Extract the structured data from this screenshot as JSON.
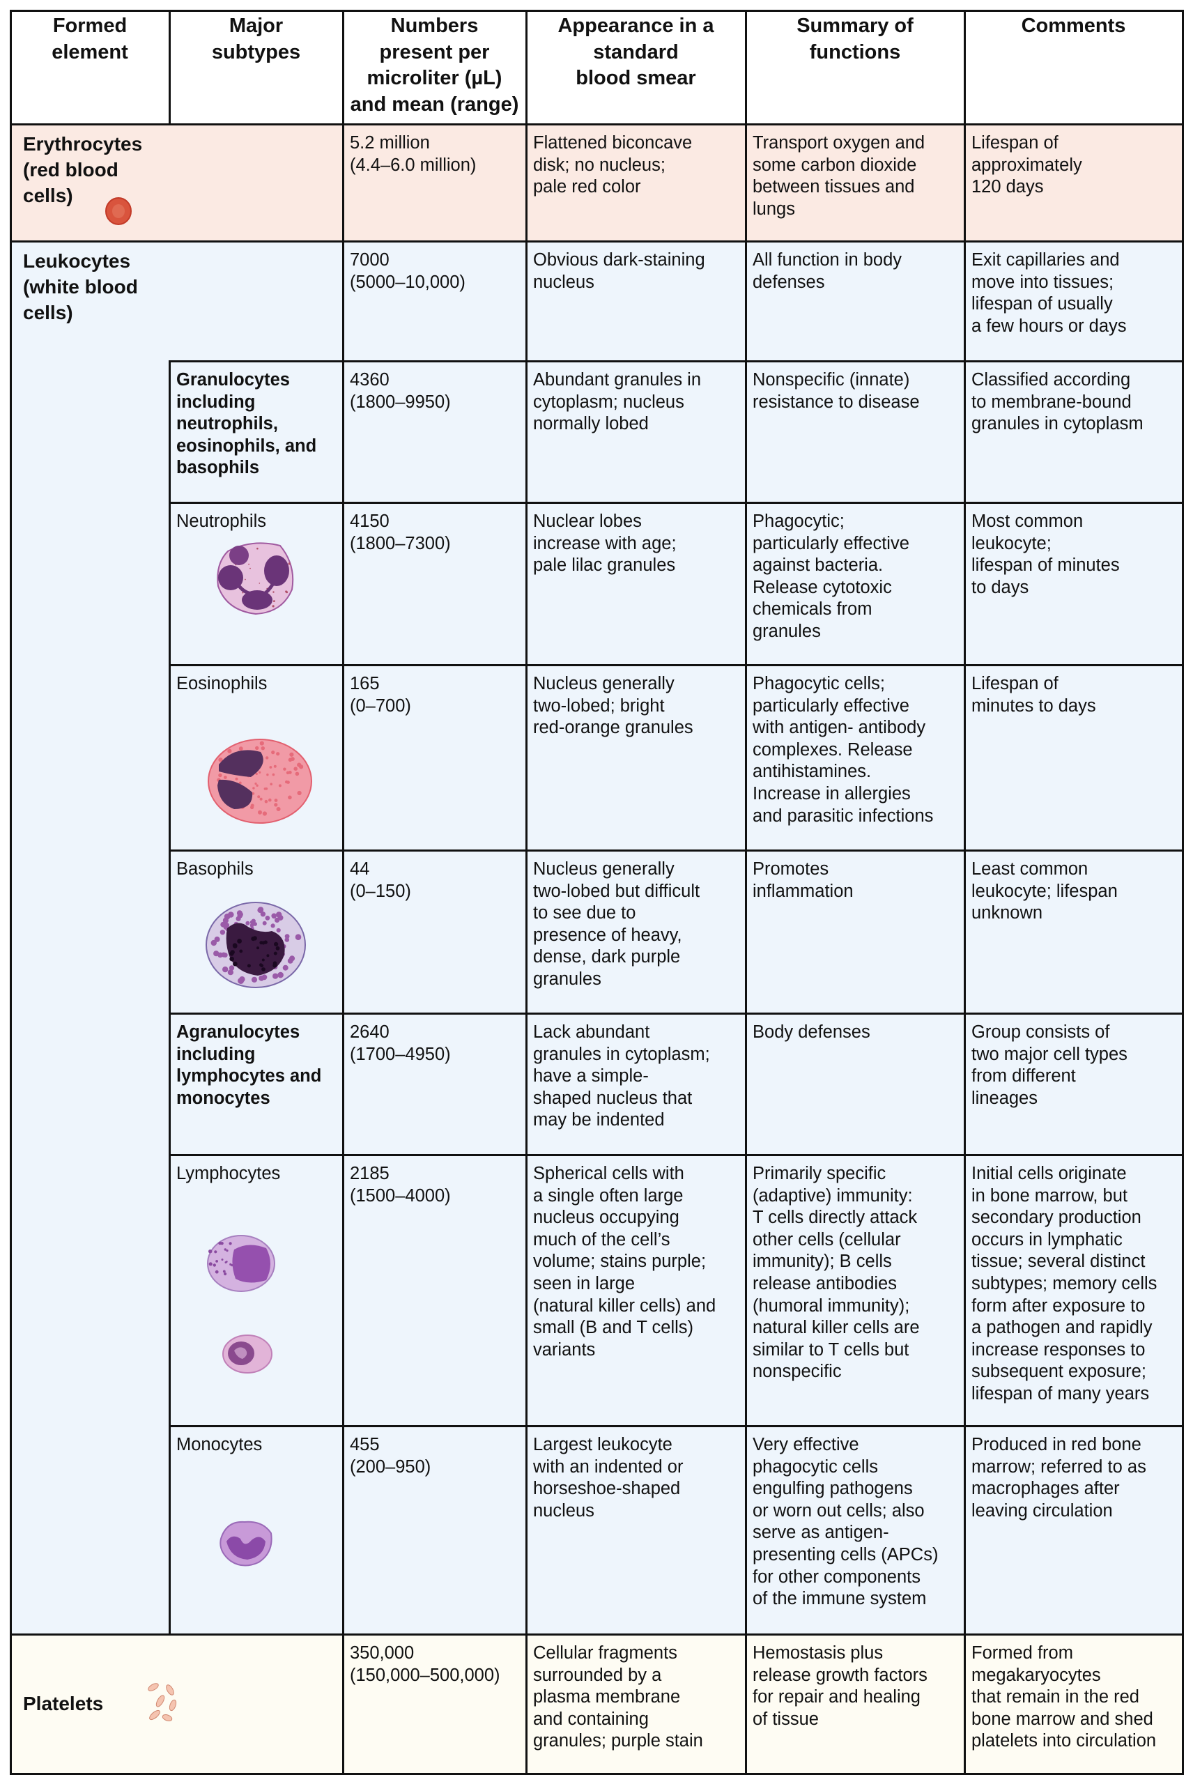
{
  "header": {
    "formed_element": "Formed\nelement",
    "major_subtypes": "Major\nsubtypes",
    "numbers": "Numbers\npresent per\nmicroliter (µL)\nand mean (range)",
    "appearance": "Appearance in a\nstandard\nblood smear",
    "functions": "Summary of\nfunctions",
    "comments": "Comments"
  },
  "colors": {
    "erythrocytes_bg": "#fbeae3",
    "leukocytes_bg": "#eef5fc",
    "platelets_bg": "#fefcf3",
    "border": "#111111"
  },
  "rows": [
    {
      "key": "erythrocytes",
      "kind": "element",
      "label": "Erythrocytes\n(red blood\ncells)",
      "icon": "red-blood-cell-icon",
      "numbers": "5.2 million\n(4.4–6.0 million)",
      "appearance": "Flattened biconcave\ndisk; no nucleus;\npale red color",
      "functions": "Transport oxygen and\nsome carbon dioxide\nbetween tissues and\nlungs",
      "comments": "Lifespan of\napproximately\n120 days"
    },
    {
      "key": "leukocytes",
      "kind": "element",
      "label": "Leukocytes\n(white blood\ncells)",
      "numbers": "7000\n(5000–10,000)",
      "appearance": "Obvious dark-staining\nnucleus",
      "functions": "All function in body\ndefenses",
      "comments": "Exit capillaries and\nmove into tissues;\nlifespan of usually\na few hours or days"
    },
    {
      "key": "granulocytes",
      "kind": "group",
      "label": "Granulocytes\nincluding\nneutrophils,\neosinophils, and\nbasophils",
      "numbers": "4360\n(1800–9950)",
      "appearance": "Abundant granules in\ncytoplasm; nucleus\nnormally lobed",
      "functions": "Nonspecific (innate)\nresistance to disease",
      "comments": "Classified according\nto membrane-bound\ngranules in cytoplasm"
    },
    {
      "key": "neutrophils",
      "kind": "subtype",
      "label": "Neutrophils",
      "icon": "neutrophil-icon",
      "numbers": "4150\n(1800–7300)",
      "appearance": "Nuclear lobes\nincrease with age;\npale lilac granules",
      "functions": "Phagocytic;\nparticularly effective\nagainst bacteria.\nRelease cytotoxic\nchemicals from\ngranules",
      "comments": "Most common\nleukocyte;\nlifespan of minutes\nto days"
    },
    {
      "key": "eosinophils",
      "kind": "subtype",
      "label": "Eosinophils",
      "icon": "eosinophil-icon",
      "numbers": "165\n(0–700)",
      "appearance": "Nucleus generally\ntwo-lobed; bright\nred-orange granules",
      "functions": "Phagocytic cells;\nparticularly effective\nwith antigen- antibody\ncomplexes. Release\nantihistamines.\nIncrease in allergies\nand parasitic infections",
      "comments": "Lifespan of\nminutes to days"
    },
    {
      "key": "basophils",
      "kind": "subtype",
      "label": "Basophils",
      "icon": "basophil-icon",
      "numbers": "44\n(0–150)",
      "appearance": "Nucleus generally\ntwo-lobed but difficult\nto see due to\npresence of heavy,\ndense, dark purple\ngranules",
      "functions": "Promotes\ninflammation",
      "comments": "Least common\nleukocyte; lifespan\nunknown"
    },
    {
      "key": "agranulocytes",
      "kind": "group",
      "label": "Agranulocytes\nincluding\nlymphocytes and\nmonocytes",
      "numbers": "2640\n(1700–4950)",
      "appearance": "Lack abundant\ngranules in cytoplasm;\nhave a simple-\nshaped nucleus that\nmay be indented",
      "functions": "Body defenses",
      "comments": "Group consists of\ntwo major cell types\nfrom different\nlineages"
    },
    {
      "key": "lymphocytes",
      "kind": "subtype",
      "label": "Lymphocytes",
      "icon": "lymphocyte-icon",
      "numbers": "2185\n(1500–4000)",
      "appearance": "Spherical cells with\na single often large\nnucleus occupying\nmuch of the cell’s\nvolume; stains purple;\nseen in large\n(natural killer cells) and\nsmall (B and T cells)\nvariants",
      "functions": "Primarily specific\n(adaptive) immunity:\nT cells directly attack\nother cells (cellular\nimmunity); B cells\nrelease antibodies\n(humoral immunity);\nnatural killer cells are\nsimilar to T cells but\nnonspecific",
      "comments": "Initial cells originate\nin bone marrow, but\nsecondary production\noccurs in lymphatic\ntissue; several distinct\nsubtypes; memory cells\nform after exposure to\na pathogen and rapidly\nincrease responses to\nsubsequent exposure;\nlifespan of many years"
    },
    {
      "key": "monocytes",
      "kind": "subtype",
      "label": "Monocytes",
      "icon": "monocyte-icon",
      "numbers": "455\n(200–950)",
      "appearance": "Largest leukocyte\nwith an indented or\nhorseshoe-shaped\nnucleus",
      "functions": "Very effective\nphagocytic cells\nengulfing pathogens\nor worn out cells; also\nserve as antigen-\npresenting cells (APCs)\nfor other components\nof the immune system",
      "comments": "Produced in red bone\nmarrow; referred to as\nmacrophages after\nleaving circulation"
    },
    {
      "key": "platelets",
      "kind": "element",
      "label": "Platelets",
      "icon": "platelets-icon",
      "numbers": "350,000\n(150,000–500,000)",
      "appearance": "Cellular fragments\nsurrounded by a\nplasma membrane\nand containing\ngranules; purple stain",
      "functions": "Hemostasis plus\nrelease growth factors\nfor repair and healing\nof tissue",
      "comments": "Formed from\nmegakaryocytes\nthat remain in the red\nbone marrow and shed\nplatelets into circulation"
    }
  ]
}
